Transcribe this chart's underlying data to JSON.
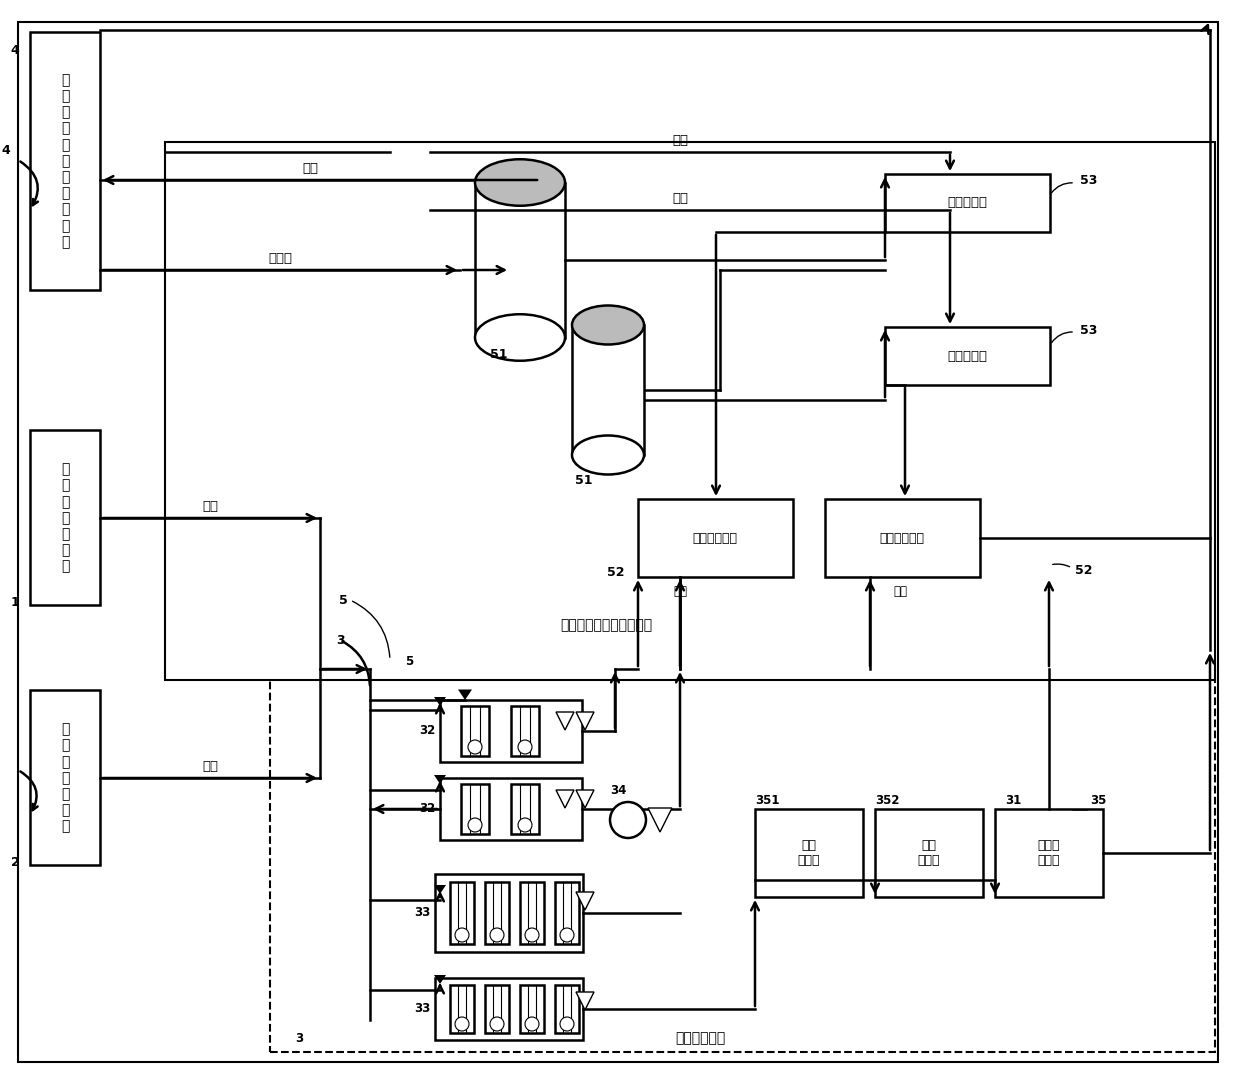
{
  "bg": "#ffffff",
  "lc": "#000000",
  "lw": 1.8,
  "fw": 12.4,
  "fh": 10.8,
  "box4_label": "乙\n烯\n法\n生\n产\n聚\n氯\n乙\n烯\n装\n置",
  "box1_label": "电\n解\n氯\n化\n钠\n装\n置",
  "box2_label": "电\n解\n氯\n化\n钾\n装\n置",
  "inner_label": "乙炔法生产聚氯乙烯装置",
  "bottom_label": "氯气分配装置",
  "mixer_label": "转化混合器",
  "furnace_label": "氯化氢合成炉",
  "liq_label": "氯气\n液化器",
  "vap_label": "氯气\n汽化器",
  "waste_label": "废气处\n理单元",
  "cl2": "氯气",
  "hcl": "氯化氢",
  "h2": "氢气",
  "c2h2": "乙炔"
}
